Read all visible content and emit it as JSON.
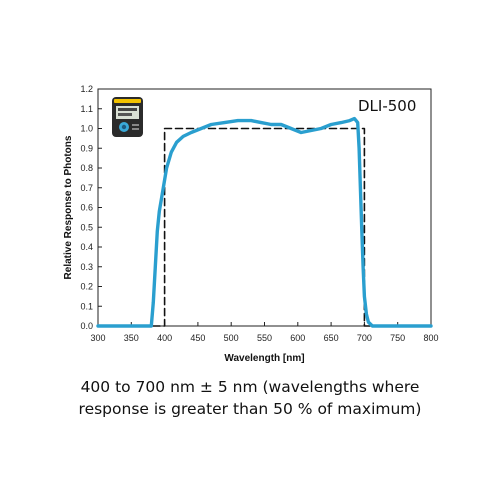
{
  "chart_data": {
    "type": "line",
    "xlabel": "Wavelength [nm]",
    "ylabel": "Relative Response to Photons",
    "xlim": [
      300,
      800
    ],
    "ylim": [
      0.0,
      1.2
    ],
    "xticks": [
      "300",
      "350",
      "400",
      "450",
      "500",
      "550",
      "600",
      "650",
      "700",
      "750",
      "800"
    ],
    "yticks": [
      "0.0",
      "0.1",
      "0.2",
      "0.3",
      "0.4",
      "0.5",
      "0.6",
      "0.7",
      "0.8",
      "0.9",
      "1.0",
      "1.1",
      "1.2"
    ],
    "grid": false,
    "series": [
      {
        "name": "DLI-500",
        "style": "solid",
        "color": "#2a9fcf",
        "x": [
          300,
          380,
          383,
          386,
          389,
          392,
          395,
          398,
          403,
          410,
          418,
          428,
          440,
          455,
          470,
          490,
          510,
          530,
          545,
          560,
          575,
          590,
          605,
          620,
          635,
          650,
          665,
          678,
          685,
          690,
          692,
          694,
          696,
          698,
          700,
          703,
          706,
          712,
          720,
          800
        ],
        "y": [
          0.0,
          0.0,
          0.12,
          0.3,
          0.48,
          0.58,
          0.64,
          0.7,
          0.8,
          0.88,
          0.93,
          0.96,
          0.98,
          1.0,
          1.02,
          1.03,
          1.04,
          1.04,
          1.03,
          1.02,
          1.02,
          1.0,
          0.98,
          0.99,
          1.0,
          1.02,
          1.03,
          1.04,
          1.05,
          1.03,
          0.9,
          0.7,
          0.5,
          0.3,
          0.15,
          0.06,
          0.02,
          0.0,
          0.0,
          0.0
        ]
      },
      {
        "name": "",
        "style": "dashed",
        "color": "#111111",
        "x": [
          300,
          400,
          400,
          700,
          700,
          800
        ],
        "y": [
          0.0,
          0.0,
          1.0,
          1.0,
          0.0,
          0.0
        ]
      }
    ],
    "annotation": "DLI-500"
  },
  "inset_icon": "dli-500-meter-device-icon",
  "caption": {
    "line1": "400 to 700 nm ± 5 nm (wavelengths where",
    "line2": "response is greater than 50 % of maximum)"
  }
}
